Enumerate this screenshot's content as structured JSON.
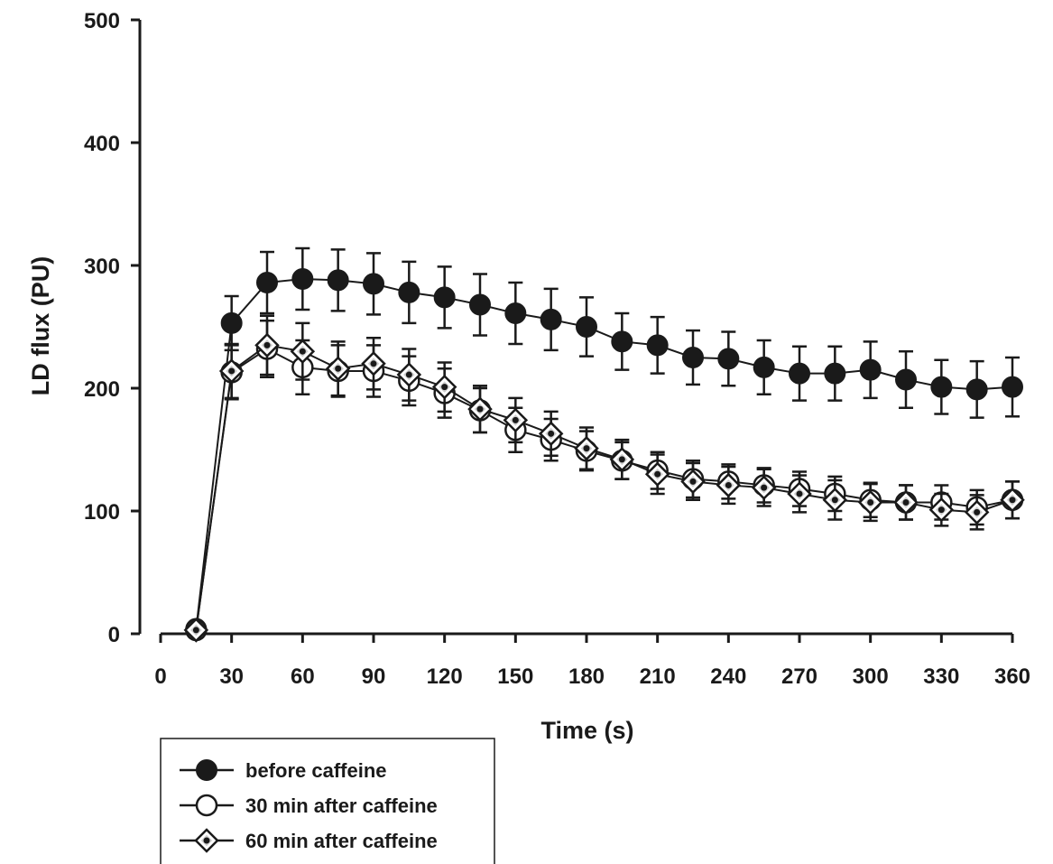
{
  "chart_data": {
    "type": "line",
    "xlabel": "Time (s)",
    "ylabel": "LD flux (PU)",
    "xlim": [
      0,
      360
    ],
    "ylim": [
      0,
      500
    ],
    "xticks": [
      0,
      30,
      60,
      90,
      120,
      150,
      180,
      210,
      240,
      270,
      300,
      330,
      360
    ],
    "yticks": [
      0,
      100,
      200,
      300,
      400,
      500
    ],
    "grid": false,
    "legend_position": "bottom-left, below plot",
    "x": [
      15,
      30,
      45,
      60,
      75,
      90,
      105,
      120,
      135,
      150,
      165,
      180,
      195,
      210,
      225,
      240,
      255,
      270,
      285,
      300,
      315,
      330,
      345,
      360
    ],
    "series": [
      {
        "name": "before caffeine",
        "marker": "filled-circle",
        "color": "#1a1a1a",
        "values": [
          4,
          253,
          286,
          289,
          288,
          285,
          278,
          274,
          268,
          261,
          256,
          250,
          238,
          235,
          225,
          224,
          217,
          212,
          212,
          215,
          207,
          201,
          199,
          201
        ],
        "errors": [
          0,
          22,
          25,
          25,
          25,
          25,
          25,
          25,
          25,
          25,
          25,
          24,
          23,
          23,
          22,
          22,
          22,
          22,
          22,
          23,
          23,
          22,
          23,
          24
        ]
      },
      {
        "name": "30 min after caffeine",
        "marker": "open-circle",
        "color": "#1a1a1a",
        "values": [
          3,
          213,
          232,
          217,
          214,
          214,
          206,
          196,
          182,
          166,
          158,
          149,
          141,
          133,
          126,
          124,
          121,
          118,
          114,
          109,
          107,
          107,
          103,
          109
        ],
        "errors": [
          0,
          22,
          23,
          22,
          21,
          21,
          20,
          20,
          18,
          18,
          17,
          16,
          15,
          15,
          15,
          14,
          14,
          14,
          14,
          14,
          14,
          14,
          14,
          15
        ]
      },
      {
        "name": "60 min after caffeine",
        "marker": "dotted-diamond",
        "color": "#1a1a1a",
        "values": [
          3,
          214,
          235,
          230,
          216,
          220,
          211,
          201,
          183,
          174,
          163,
          151,
          142,
          130,
          124,
          121,
          119,
          114,
          109,
          107,
          107,
          101,
          99,
          109
        ],
        "errors": [
          0,
          22,
          24,
          23,
          22,
          21,
          21,
          20,
          19,
          18,
          18,
          17,
          16,
          16,
          15,
          15,
          15,
          15,
          16,
          15,
          14,
          13,
          14,
          15
        ]
      }
    ]
  }
}
